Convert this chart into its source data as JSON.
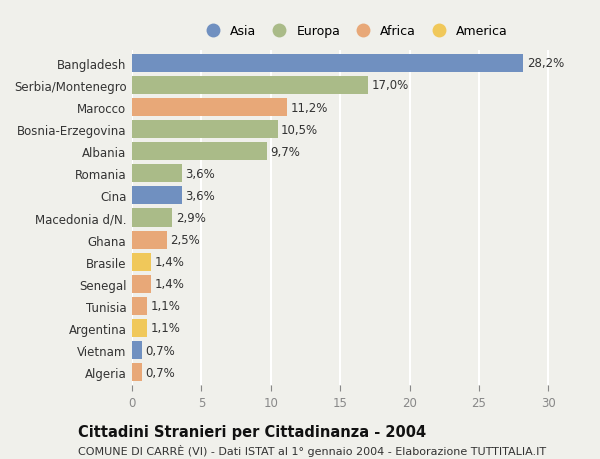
{
  "countries": [
    "Bangladesh",
    "Serbia/Montenegro",
    "Marocco",
    "Bosnia-Erzegovina",
    "Albania",
    "Romania",
    "Cina",
    "Macedonia d/N.",
    "Ghana",
    "Brasile",
    "Senegal",
    "Tunisia",
    "Argentina",
    "Vietnam",
    "Algeria"
  ],
  "values": [
    28.2,
    17.0,
    11.2,
    10.5,
    9.7,
    3.6,
    3.6,
    2.9,
    2.5,
    1.4,
    1.4,
    1.1,
    1.1,
    0.7,
    0.7
  ],
  "continents": [
    "Asia",
    "Europa",
    "Africa",
    "Europa",
    "Europa",
    "Europa",
    "Asia",
    "Europa",
    "Africa",
    "America",
    "Africa",
    "Africa",
    "America",
    "Asia",
    "Africa"
  ],
  "continent_colors": {
    "Asia": "#7090c0",
    "Europa": "#aabb88",
    "Africa": "#e8a878",
    "America": "#f0c85a"
  },
  "legend_order": [
    "Asia",
    "Europa",
    "Africa",
    "America"
  ],
  "title": "Cittadini Stranieri per Cittadinanza - 2004",
  "subtitle": "COMUNE DI CARRÈ (VI) - Dati ISTAT al 1° gennaio 2004 - Elaborazione TUTTITALIA.IT",
  "xlim": [
    0,
    32
  ],
  "xticks": [
    0,
    5,
    10,
    15,
    20,
    25,
    30
  ],
  "background_color": "#f0f0eb",
  "grid_color": "#ffffff",
  "bar_height": 0.82,
  "label_fontsize": 8.5,
  "title_fontsize": 10.5,
  "subtitle_fontsize": 8.0
}
